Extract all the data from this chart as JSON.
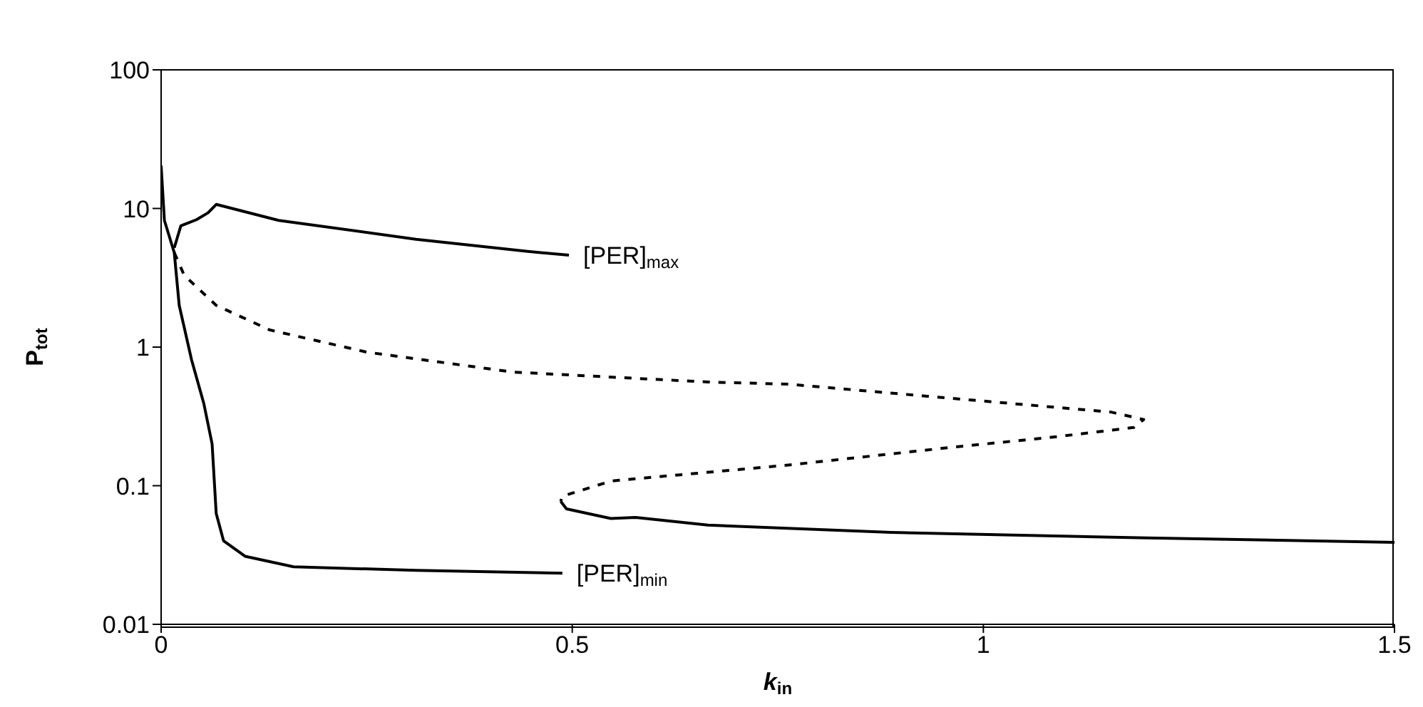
{
  "chart_data": {
    "type": "line",
    "xlabel": "k$_{in}$",
    "ylabel": "P$_{tot}$",
    "log": "y",
    "xlim": [
      0,
      1.5
    ],
    "xticks": [
      0,
      0.5,
      1,
      1.5
    ],
    "ylim": [
      0.01,
      100
    ],
    "yticks": [
      0.01,
      0.1,
      1,
      10,
      100
    ],
    "marker": "none",
    "annotations": [
      {
        "text": "[PER]$_{max}$",
        "x": 0.496,
        "y": 4.6
      },
      {
        "text": "[PER]$_{min}$",
        "x": 0.488,
        "y": 0.0234
      }
    ],
    "series": [
      {
        "color": "#000000",
        "line_style": "solid",
        "x": [
          0,
          0.004,
          0.016,
          0.022,
          0.037,
          0.052,
          0.062,
          0.067,
          0.076,
          0.102,
          0.161,
          0.31,
          0.488
        ],
        "values": [
          20.4,
          8.2,
          4.8,
          2.0,
          0.81,
          0.39,
          0.2,
          0.063,
          0.04,
          0.031,
          0.026,
          0.0245,
          0.0234
        ]
      },
      {
        "color": "#000000",
        "line_style": "solid",
        "x": [
          0.016,
          0.024,
          0.043,
          0.057,
          0.067,
          0.143,
          0.31,
          0.446,
          0.496
        ],
        "values": [
          5.2,
          7.5,
          8.3,
          9.3,
          10.7,
          8.2,
          6.0,
          4.9,
          4.6
        ]
      },
      {
        "color": "#000000",
        "line_style": "dashed",
        "x": [
          0.016,
          0.028,
          0.067,
          0.132,
          0.25,
          0.428,
          0.665,
          0.763,
          0.975,
          1.155,
          1.195,
          1.183,
          1.093,
          0.95,
          0.763,
          0.583,
          0.547,
          0.488,
          0.486
        ],
        "values": [
          4.8,
          3.3,
          2.0,
          1.33,
          0.92,
          0.66,
          0.56,
          0.54,
          0.42,
          0.34,
          0.3,
          0.263,
          0.227,
          0.186,
          0.141,
          0.113,
          0.108,
          0.084,
          0.077
        ]
      },
      {
        "color": "#000000",
        "line_style": "solid",
        "x": [
          0.486,
          0.493,
          0.547,
          0.577,
          0.665,
          0.888,
          1.199,
          1.5
        ],
        "values": [
          0.077,
          0.068,
          0.058,
          0.059,
          0.052,
          0.046,
          0.042,
          0.039
        ]
      }
    ]
  }
}
